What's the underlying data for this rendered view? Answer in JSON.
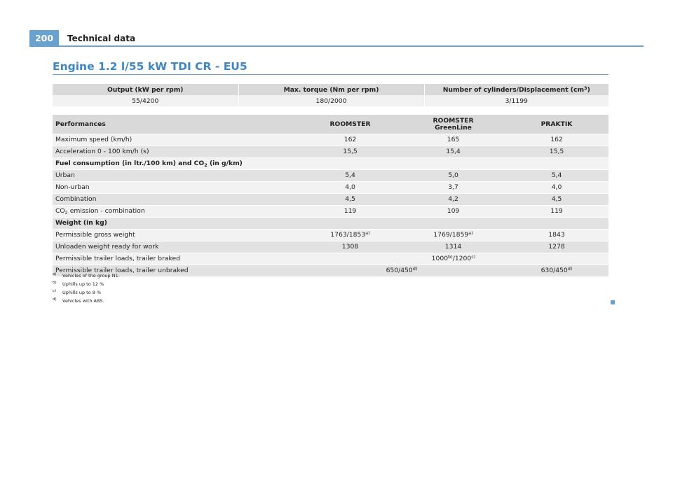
{
  "header": {
    "page_number": "200",
    "title": "Technical data"
  },
  "section_title": "Engine 1.2 l/55 kW TDI CR - EU5",
  "engine_table": {
    "headers": {
      "output": "Output (kW per rpm)",
      "torque": "Max. torque (Nm per rpm)",
      "cylinders": "Number of cylinders/Displacement (cm",
      "cylinders_sup": "3",
      "cylinders_close": ")"
    },
    "values": {
      "output": "55/4200",
      "torque": "180/2000",
      "cylinders": "3/1199"
    }
  },
  "perf_table": {
    "headers": {
      "performances": "Performances",
      "roomster": "ROOMSTER",
      "greenline_1": "ROOMSTER",
      "greenline_2": "GreenLine",
      "praktik": "PRAKTIK"
    },
    "max_speed": {
      "label": "Maximum speed (km/h)",
      "roomster": "162",
      "greenline": "165",
      "praktik": "162"
    },
    "acceleration": {
      "label": "Acceleration 0 - 100 km/h (s)",
      "roomster": "15,5",
      "greenline": "15,4",
      "praktik": "15,5"
    },
    "fuel_header": {
      "a": "Fuel consumption (in ltr./100 km) and CO",
      "sub": "2",
      "b": " (in g/km)"
    },
    "urban": {
      "label": "Urban",
      "roomster": "5,4",
      "greenline": "5,0",
      "praktik": "5,4"
    },
    "non_urban": {
      "label": "Non-urban",
      "roomster": "4,0",
      "greenline": "3,7",
      "praktik": "4,0"
    },
    "combination": {
      "label": "Combination",
      "roomster": "4,5",
      "greenline": "4,2",
      "praktik": "4,5"
    },
    "co2": {
      "label_a": "CO",
      "label_sub": "2",
      "label_b": " emission - combination",
      "roomster": "119",
      "greenline": "109",
      "praktik": "119"
    },
    "weight_header": "Weight (in kg)",
    "gross": {
      "label": "Permissible gross weight",
      "roomster": "1763/1853",
      "roomster_sup": "a)",
      "greenline": "1769/1859",
      "greenline_sup": "a)",
      "praktik": "1843"
    },
    "unloaden": {
      "label": "Unloaden weight ready for work",
      "roomster": "1308",
      "greenline": "1314",
      "praktik": "1278"
    },
    "trailer_braked": {
      "label": "Permissible trailer loads, trailer braked",
      "v1": "1000",
      "v1_sup": "b)",
      "v2": "/1200",
      "v2_sup": "c)"
    },
    "trailer_unbraked": {
      "label": "Permissible trailer loads, trailer unbraked",
      "roomster": "650/450",
      "roomster_sup": "d)",
      "praktik": "630/450",
      "praktik_sup": "d)"
    }
  },
  "footnotes": [
    {
      "mark": "a)",
      "text": "Vehicles of the group N1."
    },
    {
      "mark": "b)",
      "text": "Uphills up to 12 %"
    },
    {
      "mark": "c)",
      "text": "Uphills up to 8 %"
    },
    {
      "mark": "d)",
      "text": "Vehicles with ABS."
    }
  ],
  "colors": {
    "accent": "#6aa2cf",
    "title": "#3d87c4",
    "row_light": "#f2f2f2",
    "row_dark": "#e2e2e2",
    "header_bg": "#d9d9d9"
  }
}
